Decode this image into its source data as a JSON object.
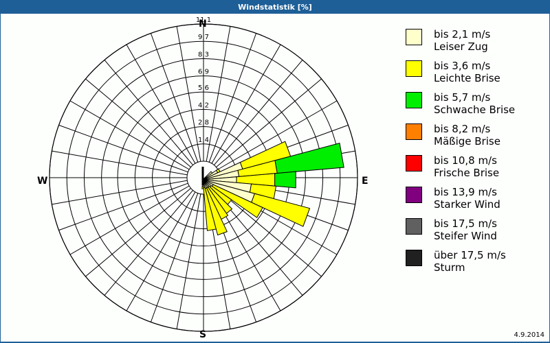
{
  "window": {
    "title": "Windstatistik [%]"
  },
  "compass": {
    "north": "N",
    "east": "E",
    "south": "S",
    "west": "W"
  },
  "ring_labels": [
    "1,4",
    "2,8",
    "4,2",
    "5,6",
    "6,9",
    "8,3",
    "9,7",
    "11,1"
  ],
  "legend": [
    {
      "range": "bis 2,1 m/s",
      "name": "Leiser Zug",
      "color": "#ffffcc"
    },
    {
      "range": "bis 3,6 m/s",
      "name": "Leichte Brise",
      "color": "#ffff00"
    },
    {
      "range": "bis 5,7 m/s",
      "name": "Schwache Brise",
      "color": "#00ee00"
    },
    {
      "range": "bis 8,2 m/s",
      "name": "Mäßige Brise",
      "color": "#ff8000"
    },
    {
      "range": "bis 10,8 m/s",
      "name": "Frische Brise",
      "color": "#ff0000"
    },
    {
      "range": "bis 13,9 m/s",
      "name": "Starker Wind",
      "color": "#800080"
    },
    {
      "range": "bis 17,5 m/s",
      "name": "Steifer Wind",
      "color": "#606060"
    },
    {
      "range": "über 17,5 m/s",
      "name": "Sturm",
      "color": "#202020"
    }
  ],
  "date": "4.9.2014",
  "chart_data": {
    "type": "polar-bar",
    "title": "Windstatistik [%]",
    "unit": "%",
    "rmax": 11.1,
    "ring_ticks": [
      1.4,
      2.8,
      4.2,
      5.6,
      6.9,
      8.3,
      9.7,
      11.1
    ],
    "sector_width_deg": 10,
    "series_names": [
      "Leiser Zug",
      "Leichte Brise",
      "Schwache Brise"
    ],
    "stack_note": "cumulative values per direction (cream, yellow, green)",
    "sectors": [
      {
        "dir": 50,
        "cum": [
          0.6,
          0.6,
          0.6
        ]
      },
      {
        "dir": 60,
        "cum": [
          1.0,
          1.2,
          1.2
        ]
      },
      {
        "dir": 70,
        "cum": [
          3.0,
          7.0,
          7.0
        ]
      },
      {
        "dir": 80,
        "cum": [
          2.6,
          5.7,
          11.1
        ]
      },
      {
        "dir": 90,
        "cum": [
          2.4,
          5.5,
          7.2
        ]
      },
      {
        "dir": 100,
        "cum": [
          3.6,
          5.6,
          5.6
        ]
      },
      {
        "dir": 110,
        "cum": [
          4.0,
          8.6,
          8.6
        ]
      },
      {
        "dir": 120,
        "cum": [
          0.6,
          5.0,
          5.0
        ]
      },
      {
        "dir": 130,
        "cum": [
          0.5,
          2.5,
          2.5
        ]
      },
      {
        "dir": 140,
        "cum": [
          0.4,
          3.0,
          3.0
        ]
      },
      {
        "dir": 150,
        "cum": [
          0.4,
          3.2,
          3.2
        ]
      },
      {
        "dir": 160,
        "cum": [
          0.4,
          4.3,
          4.3
        ]
      },
      {
        "dir": 170,
        "cum": [
          0.3,
          3.8,
          3.8
        ]
      },
      {
        "dir": 180,
        "cum": [
          0.2,
          0.4,
          0.4
        ]
      }
    ]
  }
}
